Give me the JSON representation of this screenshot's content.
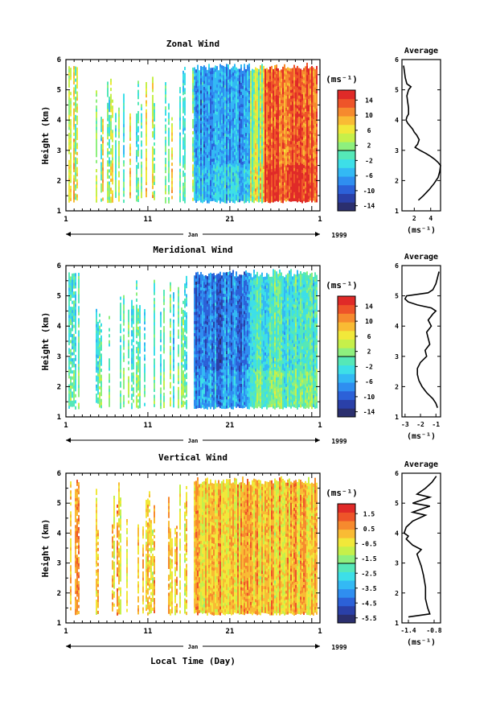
{
  "chart_data": [
    {
      "type": "heatmap",
      "title": "Zonal Wind",
      "ylabel": "Height (km)",
      "ylim": [
        1,
        6
      ],
      "yticks": [
        "1",
        "2",
        "3",
        "4",
        "5",
        "6"
      ],
      "xticks": [
        "1",
        "11",
        "21",
        "1"
      ],
      "month_label": "Jan",
      "year_label": "1999",
      "colorbar_unit": "(ms⁻¹)",
      "colorbar_ticks": [
        "14",
        "10",
        "6",
        "2",
        "-2",
        "-6",
        "-10",
        "-14"
      ],
      "colorbar_range": [
        -16,
        16
      ],
      "profile": {
        "title": "Average",
        "xlabel": "(ms⁻¹)",
        "xticks": [
          "2",
          "4"
        ],
        "xlim": [
          0.5,
          5.2
        ],
        "ylim": [
          1,
          6
        ],
        "yticks": [
          "1",
          "2",
          "3",
          "4",
          "5",
          "6"
        ],
        "heights": [
          1.35,
          1.5,
          1.7,
          1.9,
          2.1,
          2.3,
          2.5,
          2.6,
          2.7,
          2.8,
          2.9,
          3.0,
          3.1,
          3.2,
          3.35,
          3.5,
          3.6,
          3.7,
          3.8,
          3.9,
          4.0,
          4.1,
          4.2,
          4.4,
          4.6,
          4.8,
          5.0,
          5.1,
          5.2,
          5.4,
          5.6,
          5.8
        ],
        "values": [
          2.5,
          3.1,
          3.8,
          4.4,
          4.9,
          5.1,
          5.2,
          4.9,
          4.5,
          4.0,
          3.4,
          2.7,
          2.1,
          2.4,
          2.6,
          2.3,
          2.0,
          1.8,
          1.5,
          1.2,
          1.0,
          1.1,
          1.3,
          1.3,
          1.2,
          1.1,
          1.3,
          1.6,
          1.1,
          0.9,
          0.8,
          0.7
        ]
      }
    },
    {
      "type": "heatmap",
      "title": "Meridional Wind",
      "ylabel": "Height (km)",
      "ylim": [
        1,
        6
      ],
      "yticks": [
        "1",
        "2",
        "3",
        "4",
        "5",
        "6"
      ],
      "xticks": [
        "1",
        "11",
        "21",
        "1"
      ],
      "month_label": "Jan",
      "year_label": "1999",
      "colorbar_unit": "(ms⁻¹)",
      "colorbar_ticks": [
        "14",
        "10",
        "6",
        "2",
        "-2",
        "-6",
        "-10",
        "-14"
      ],
      "colorbar_range": [
        -16,
        16
      ],
      "profile": {
        "title": "Average",
        "xlabel": "(ms⁻¹)",
        "xticks": [
          "-3",
          "-2",
          "-1"
        ],
        "xlim": [
          -3.2,
          -0.7
        ],
        "ylim": [
          1,
          6
        ],
        "yticks": [
          "1",
          "2",
          "3",
          "4",
          "5",
          "6"
        ],
        "heights": [
          1.3,
          1.45,
          1.6,
          1.8,
          2.0,
          2.2,
          2.4,
          2.6,
          2.8,
          3.0,
          3.2,
          3.4,
          3.6,
          3.8,
          4.0,
          4.2,
          4.4,
          4.5,
          4.6,
          4.7,
          4.8,
          4.9,
          5.0,
          5.1,
          5.2,
          5.4,
          5.6,
          5.8
        ],
        "values": [
          -0.9,
          -1.0,
          -1.2,
          -1.6,
          -1.9,
          -2.1,
          -2.2,
          -2.2,
          -2.0,
          -1.6,
          -1.7,
          -1.4,
          -1.5,
          -1.6,
          -1.3,
          -1.5,
          -1.2,
          -1.0,
          -1.3,
          -2.2,
          -2.8,
          -3.0,
          -2.9,
          -1.5,
          -1.2,
          -1.0,
          -0.9,
          -0.8
        ]
      }
    },
    {
      "type": "heatmap",
      "title": "Vertical Wind",
      "ylabel": "Height (km)",
      "ylim": [
        1,
        6
      ],
      "yticks": [
        "1",
        "2",
        "3",
        "4",
        "5",
        "6"
      ],
      "xticks": [
        "1",
        "11",
        "21",
        "1"
      ],
      "month_label": "Jan",
      "year_label": "1999",
      "xlabel": "Local Time (Day)",
      "colorbar_unit": "(ms⁻¹)",
      "colorbar_ticks": [
        "1.5",
        "0.5",
        "-0.5",
        "-1.5",
        "-2.5",
        "-3.5",
        "-4.5",
        "-5.5"
      ],
      "colorbar_range": [
        -6,
        2
      ],
      "profile": {
        "title": "Average",
        "xlabel": "(ms⁻¹)",
        "xticks": [
          "-1.4",
          "-0.8"
        ],
        "xlim": [
          -1.55,
          -0.65
        ],
        "ylim": [
          1,
          6
        ],
        "yticks": [
          "1",
          "2",
          "3",
          "4",
          "5",
          "6"
        ],
        "heights": [
          1.2,
          1.3,
          1.5,
          1.8,
          2.2,
          2.6,
          2.9,
          3.1,
          3.3,
          3.45,
          3.6,
          3.8,
          3.9,
          4.0,
          4.2,
          4.4,
          4.6,
          4.7,
          4.8,
          4.9,
          5.0,
          5.1,
          5.2,
          5.3,
          5.5,
          5.7,
          5.9
        ],
        "values": [
          -1.4,
          -0.9,
          -0.95,
          -1.0,
          -1.0,
          -1.05,
          -1.1,
          -1.15,
          -1.2,
          -1.1,
          -1.3,
          -1.45,
          -1.4,
          -1.5,
          -1.45,
          -1.3,
          -1.0,
          -1.3,
          -1.1,
          -0.9,
          -1.3,
          -1.1,
          -0.9,
          -1.2,
          -1.0,
          -0.85,
          -0.75
        ]
      }
    }
  ]
}
